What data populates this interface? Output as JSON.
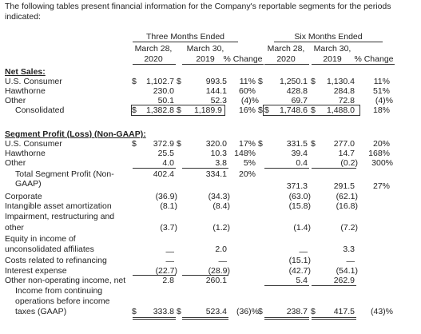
{
  "intro": "The following tables present financial information for the Company's reportable segments for the periods indicated:",
  "headers": {
    "three_months": "Three Months Ended",
    "six_months": "Six Months Ended",
    "march28": "March 28,",
    "march30": "March 30,",
    "y2020": "2020",
    "y2019": "2019",
    "pct_change": "% Change"
  },
  "net_sales": {
    "title": "Net Sales:",
    "rows": [
      {
        "label": "U.S. Consumer",
        "d1": "$",
        "q20": "1,102.7",
        "d2": "$",
        "q19": "993.5",
        "qc": "11%",
        "d3": "$",
        "s20": "1,250.1",
        "d4": "$",
        "s19": "1,130.4",
        "sc": "11%"
      },
      {
        "label": "Hawthorne",
        "d1": "",
        "q20": "230.0",
        "d2": "",
        "q19": "144.1",
        "qc": "60%",
        "d3": "",
        "s20": "428.8",
        "d4": "",
        "s19": "284.8",
        "sc": "51%"
      },
      {
        "label": "Other",
        "d1": "",
        "q20": "50.1",
        "d2": "",
        "q19": "52.3",
        "qc": "(4)%",
        "d3": "",
        "s20": "69.7",
        "d4": "",
        "s19": "72.8",
        "sc": "(4)%"
      },
      {
        "label": "Consolidated",
        "d1": "$",
        "q20": "1,382.8",
        "d2": "$",
        "q19": "1,189.9",
        "qc": "16%",
        "d3": "$",
        "s20": "1,748.6",
        "d4": "$",
        "s19": "1,488.0",
        "sc": "18%"
      }
    ]
  },
  "segment_profit": {
    "title": "Segment Profit (Loss) (Non-GAAP):",
    "rows": [
      {
        "label": "U.S. Consumer",
        "d1": "$",
        "q20": "372.9",
        "d2": "$",
        "q19": "320.0",
        "qc": "17%",
        "d3": "$",
        "s20": "331.5",
        "d4": "$",
        "s19": "277.0",
        "sc": "20%"
      },
      {
        "label": "Hawthorne",
        "d1": "",
        "q20": "25.5",
        "d2": "",
        "q19": "10.3",
        "qc": "148%",
        "d3": "",
        "s20": "39.4",
        "d4": "",
        "s19": "14.7",
        "sc": "168%"
      },
      {
        "label": "Other",
        "d1": "",
        "q20": "4.0",
        "d2": "",
        "q19": "3.8",
        "qc": "5%",
        "d3": "",
        "s20": "0.4",
        "d4": "",
        "s19": "(0.2)",
        "sc": "300%"
      }
    ],
    "total": {
      "label1": "Total Segment Profit (Non-",
      "label2": "GAAP)",
      "q20": "402.4",
      "q19": "334.1",
      "qc": "20%",
      "s20": "371.3",
      "s19": "291.5",
      "sc": "27%"
    }
  },
  "other_items": [
    {
      "label": "Corporate",
      "q20": "(36.9)",
      "q19": "(34.3)",
      "s20": "(63.0)",
      "s19": "(62.1)"
    },
    {
      "label": "Intangible asset amortization",
      "q20": "(8.1)",
      "q19": "(8.4)",
      "s20": "(15.8)",
      "s19": "(16.8)"
    },
    {
      "label1": "Impairment, restructuring and",
      "label2": "other",
      "q20": "(3.7)",
      "q19": "(1.2)",
      "s20": "(1.4)",
      "s19": "(7.2)"
    },
    {
      "label1": "Equity in income of",
      "label2": "unconsolidated affiliates",
      "q20": "—",
      "q19": "2.0",
      "s20": "—",
      "s19": "3.3"
    },
    {
      "label": "Costs related to refinancing",
      "q20": "—",
      "q19": "—",
      "s20": "(15.1)",
      "s19": "—"
    },
    {
      "label": "Interest expense",
      "q20": "(22.7)",
      "q19": "(28.9)",
      "s20": "(42.7)",
      "s19": "(54.1)"
    },
    {
      "label": "Other non-operating income, net",
      "q20": "2.8",
      "q19": "260.1",
      "s20": "5.4",
      "s19": "262.9"
    }
  ],
  "final": {
    "label1": "Income from continuing",
    "label2": "operations before income",
    "label3": "taxes (GAAP)",
    "d1": "$",
    "q20": "333.8",
    "d2": "$",
    "q19": "523.4",
    "qc": "(36)%",
    "d3": "$",
    "s20": "238.7",
    "d4": "$",
    "s19": "417.5",
    "sc": "(43)%"
  }
}
